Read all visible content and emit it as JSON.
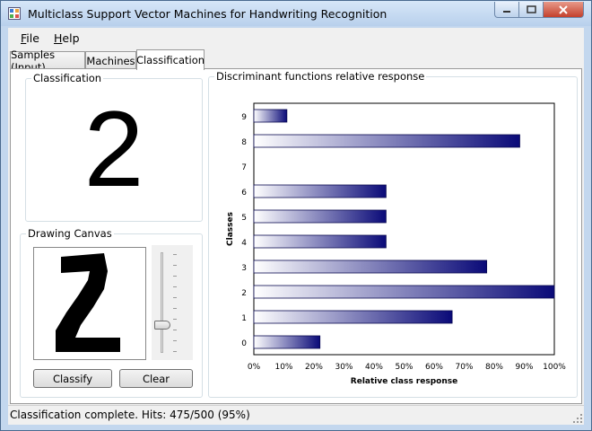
{
  "window": {
    "title": "Multiclass Support Vector Machines for Handwriting Recognition"
  },
  "menu": [
    {
      "label": "File",
      "mnemonic": "F",
      "rest": "ile"
    },
    {
      "label": "Help",
      "mnemonic": "H",
      "rest": "elp"
    }
  ],
  "tabs": [
    {
      "label": "Samples (Input)"
    },
    {
      "label": "Machines"
    },
    {
      "label": "Classification",
      "active": true
    }
  ],
  "classification": {
    "group_label": "Classification",
    "result": "2"
  },
  "drawing": {
    "group_label": "Drawing Canvas",
    "pen_size_fraction": 0.28,
    "classify_label": "Classify",
    "clear_label": "Clear"
  },
  "chart_group_label": "Discriminant functions relative response",
  "chart_data": {
    "type": "bar",
    "orientation": "horizontal",
    "title": "",
    "xlabel": "Relative class response",
    "ylabel": "Classes",
    "categories": [
      "0",
      "1",
      "2",
      "3",
      "4",
      "5",
      "6",
      "7",
      "8",
      "9"
    ],
    "values": [
      0.22,
      0.66,
      1.0,
      0.775,
      0.44,
      0.44,
      0.44,
      0.0,
      0.885,
      0.11
    ],
    "xlim": [
      0,
      1
    ],
    "x_tick_labels": [
      "0%",
      "10%",
      "20%",
      "30%",
      "40%",
      "50%",
      "60%",
      "70%",
      "80%",
      "90%",
      "100%"
    ],
    "bar_gradient": [
      "#ffffff",
      "#0a0a78"
    ]
  },
  "status": {
    "text": "Classification complete. Hits: 475/500 (95%)"
  }
}
